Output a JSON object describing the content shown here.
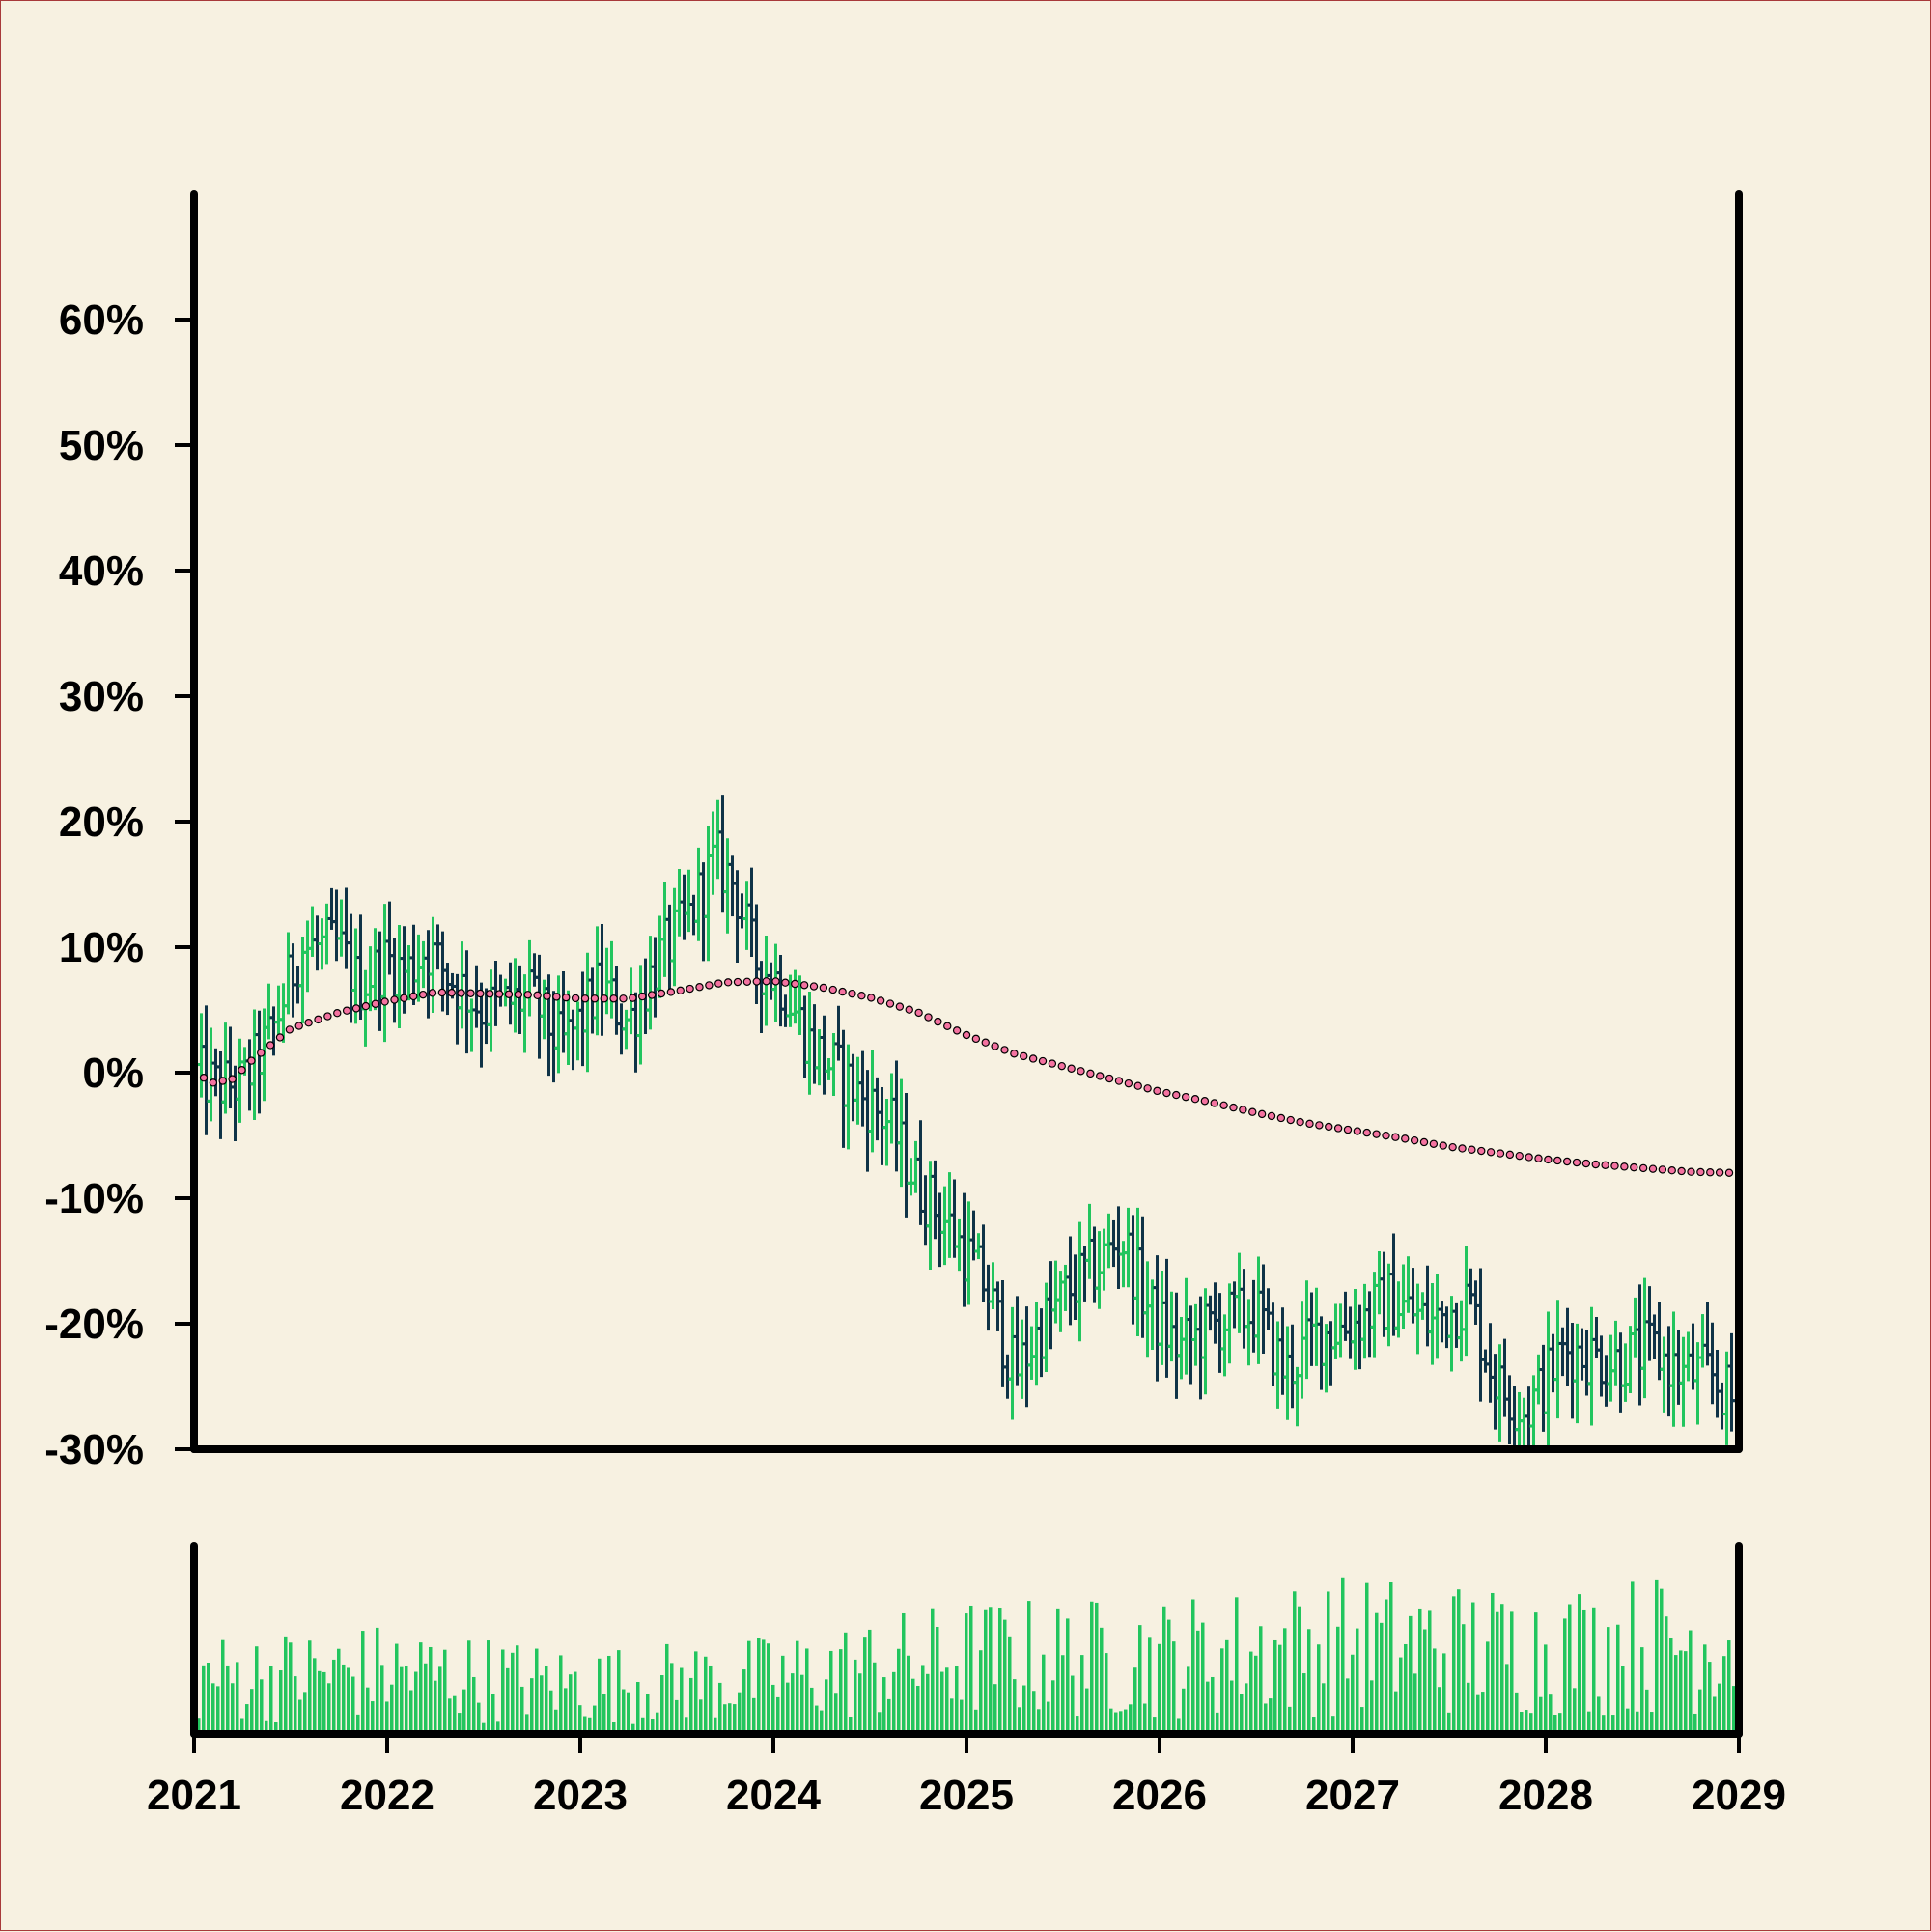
{
  "chart_data": {
    "type": "ohlc",
    "title": "",
    "xlabel": "",
    "ylabel": "",
    "y_ticks": [
      "60%",
      "50%",
      "40%",
      "30%",
      "20%",
      "10%",
      "0%",
      "-10%",
      "-20%",
      "-30%"
    ],
    "y_tick_values": [
      60,
      50,
      40,
      30,
      20,
      10,
      0,
      -10,
      -20,
      -30
    ],
    "x_ticks": [
      "2021",
      "2022",
      "2023",
      "2024",
      "2025",
      "2026",
      "2027",
      "2028",
      "2029"
    ],
    "x_tick_values": [
      2021,
      2022,
      2023,
      2024,
      2025,
      2026,
      2027,
      2028,
      2029
    ],
    "ylim": [
      -30,
      70
    ],
    "xlim": [
      2021,
      2029
    ],
    "grid": false,
    "legend": "none",
    "colors": {
      "up": "#22c55e",
      "down": "#0f3347",
      "trend_fill": "#f472a0",
      "trend_edge": "#000000",
      "volume": "#22c55e",
      "axis": "#000000",
      "background": "#f7f1e1"
    },
    "bars_per_year": 40,
    "price_path": [
      [
        2021.0,
        0
      ],
      [
        2021.1,
        -1
      ],
      [
        2021.25,
        -1
      ],
      [
        2021.4,
        3
      ],
      [
        2021.55,
        10
      ],
      [
        2021.75,
        10
      ],
      [
        2021.85,
        7
      ],
      [
        2022.0,
        9
      ],
      [
        2022.1,
        8
      ],
      [
        2022.2,
        10
      ],
      [
        2022.3,
        8
      ],
      [
        2022.5,
        5
      ],
      [
        2022.75,
        6
      ],
      [
        2022.9,
        2
      ],
      [
        2023.0,
        4
      ],
      [
        2023.1,
        7
      ],
      [
        2023.25,
        4
      ],
      [
        2023.4,
        9
      ],
      [
        2023.55,
        12
      ],
      [
        2023.7,
        17
      ],
      [
        2023.8,
        15
      ],
      [
        2023.9,
        9
      ],
      [
        2024.05,
        7
      ],
      [
        2024.2,
        2
      ],
      [
        2024.4,
        -1
      ],
      [
        2024.6,
        -4
      ],
      [
        2024.75,
        -9
      ],
      [
        2024.9,
        -12
      ],
      [
        2025.1,
        -17
      ],
      [
        2025.25,
        -24
      ],
      [
        2025.4,
        -20
      ],
      [
        2025.55,
        -17
      ],
      [
        2025.7,
        -15
      ],
      [
        2025.8,
        -13
      ],
      [
        2025.95,
        -19
      ],
      [
        2026.1,
        -22
      ],
      [
        2026.3,
        -20
      ],
      [
        2026.5,
        -19
      ],
      [
        2026.65,
        -24
      ],
      [
        2026.8,
        -21
      ],
      [
        2027.0,
        -20
      ],
      [
        2027.2,
        -18
      ],
      [
        2027.4,
        -20
      ],
      [
        2027.6,
        -18
      ],
      [
        2027.75,
        -25
      ],
      [
        2027.9,
        -27
      ],
      [
        2028.1,
        -22
      ],
      [
        2028.35,
        -23
      ],
      [
        2028.55,
        -22
      ],
      [
        2028.7,
        -24
      ],
      [
        2028.85,
        -24
      ],
      [
        2029.0,
        -27
      ]
    ],
    "trend_line": [
      [
        2021.0,
        0
      ],
      [
        2021.1,
        -0.8
      ],
      [
        2021.2,
        -0.5
      ],
      [
        2021.3,
        1
      ],
      [
        2021.5,
        3.5
      ],
      [
        2021.75,
        4.8
      ],
      [
        2022.0,
        5.7
      ],
      [
        2022.25,
        6.4
      ],
      [
        2022.5,
        6.3
      ],
      [
        2022.75,
        6.2
      ],
      [
        2023.0,
        5.9
      ],
      [
        2023.25,
        5.9
      ],
      [
        2023.5,
        6.5
      ],
      [
        2023.75,
        7.2
      ],
      [
        2024.0,
        7.3
      ],
      [
        2024.25,
        6.8
      ],
      [
        2024.5,
        6.0
      ],
      [
        2024.75,
        4.8
      ],
      [
        2025.0,
        3.0
      ],
      [
        2025.25,
        1.5
      ],
      [
        2025.5,
        0.5
      ],
      [
        2025.75,
        -0.5
      ],
      [
        2026.0,
        -1.5
      ],
      [
        2026.25,
        -2.3
      ],
      [
        2026.5,
        -3.2
      ],
      [
        2026.75,
        -4.0
      ],
      [
        2027.0,
        -4.6
      ],
      [
        2027.25,
        -5.2
      ],
      [
        2027.5,
        -5.9
      ],
      [
        2027.75,
        -6.4
      ],
      [
        2028.0,
        -6.9
      ],
      [
        2028.25,
        -7.3
      ],
      [
        2028.5,
        -7.6
      ],
      [
        2028.75,
        -7.9
      ],
      [
        2029.0,
        -8.0
      ]
    ],
    "volume_profile": [
      [
        2021.0,
        0.4
      ],
      [
        2022.0,
        0.45
      ],
      [
        2023.0,
        0.35
      ],
      [
        2024.0,
        0.4
      ],
      [
        2025.0,
        0.55
      ],
      [
        2026.0,
        0.55
      ],
      [
        2027.0,
        0.65
      ],
      [
        2028.0,
        0.6
      ],
      [
        2029.0,
        0.7
      ]
    ]
  }
}
